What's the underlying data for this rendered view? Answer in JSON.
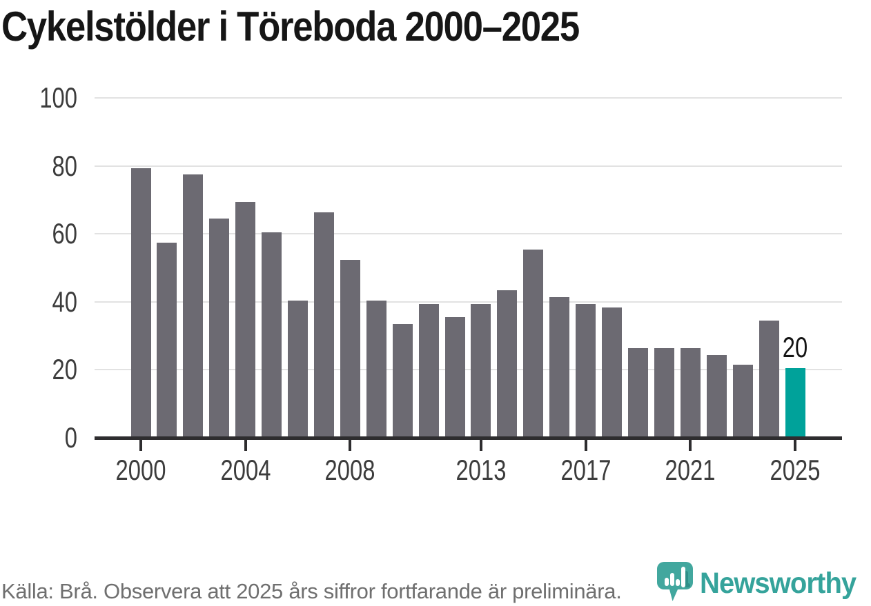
{
  "title": "Cykelstölder i Töreboda 2000–2025",
  "source_note": "Källa: Brå. Observera att 2025 års siffror fortfarande är preliminära.",
  "branding": {
    "name": "Newsworthy",
    "icon": "newsworthy-speech-bubble-bar-chart-icon",
    "icon_color": "#42a79e",
    "icon_shadow_color": "#2e8f88",
    "text_color": "#35a39b"
  },
  "colors": {
    "bar": "#6c6a72",
    "highlight": "#00a29a",
    "gridline": "#e2e2e2",
    "axis": "#2e2d2f",
    "axis_label": "#3c3c3c",
    "title_text": "#161616",
    "source_text": "#6f6f6f",
    "background": "#ffffff"
  },
  "chart_data": {
    "type": "bar",
    "title": "Cykelstölder i Töreboda 2000–2025",
    "xlabel": "",
    "ylabel": "",
    "categories": [
      2000,
      2001,
      2002,
      2003,
      2004,
      2005,
      2006,
      2007,
      2008,
      2009,
      2010,
      2011,
      2012,
      2013,
      2014,
      2015,
      2016,
      2017,
      2018,
      2019,
      2020,
      2021,
      2022,
      2023,
      2024,
      2025
    ],
    "values": [
      79,
      57,
      77,
      64,
      69,
      60,
      40,
      66,
      52,
      40,
      33,
      39,
      35,
      39,
      43,
      55,
      41,
      39,
      38,
      26,
      26,
      26,
      24,
      21,
      34,
      20
    ],
    "ylim": [
      0,
      100
    ],
    "yticks": [
      0,
      20,
      40,
      60,
      80,
      100
    ],
    "xticks": [
      2000,
      2004,
      2008,
      2013,
      2017,
      2021,
      2025
    ],
    "grid": true,
    "legend": "none",
    "highlight_index": 25,
    "highlight_label": "20"
  }
}
